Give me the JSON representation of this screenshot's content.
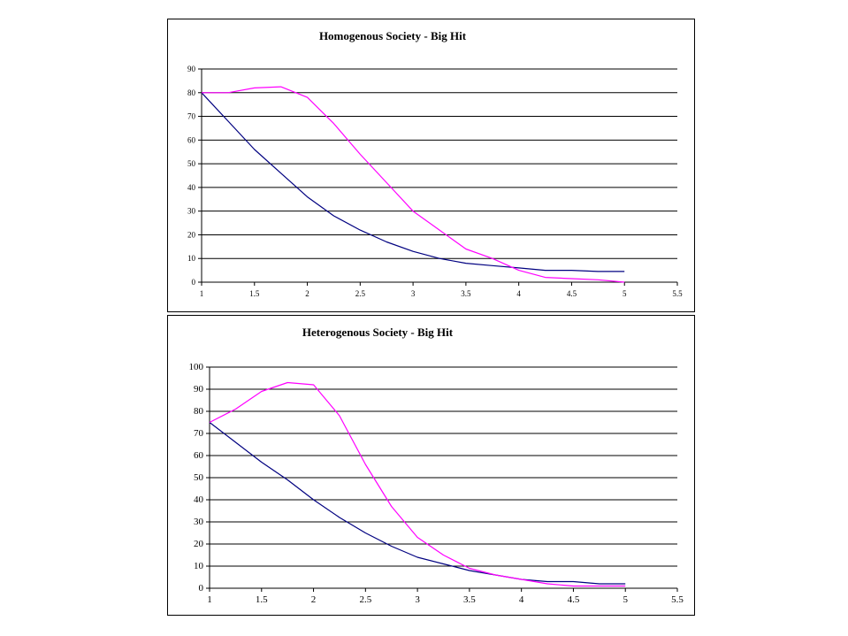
{
  "chart_data": [
    {
      "type": "line",
      "title": "Homogenous Society - Big Hit",
      "xlabel": "",
      "ylabel": "",
      "xlim": [
        1,
        5.5
      ],
      "ylim": [
        0,
        90
      ],
      "x_ticks": [
        "1",
        "1.5",
        "2",
        "2.5",
        "3",
        "3.5",
        "4",
        "4.5",
        "5",
        "5.5"
      ],
      "y_ticks": [
        "0",
        "10",
        "20",
        "30",
        "40",
        "50",
        "60",
        "70",
        "80",
        "90"
      ],
      "grid": "horizontal",
      "legend": "none",
      "series": [
        {
          "color": "#000080",
          "x": [
            1,
            1.25,
            1.5,
            1.75,
            2,
            2.25,
            2.5,
            2.75,
            3,
            3.25,
            3.5,
            3.75,
            4,
            4.25,
            4.5,
            4.75,
            5
          ],
          "y": [
            80,
            68,
            56,
            46,
            36,
            28,
            22,
            17,
            13,
            10,
            8,
            7,
            6,
            5,
            5,
            4.5,
            4.5
          ]
        },
        {
          "color": "#ff00ff",
          "x": [
            1,
            1.25,
            1.5,
            1.75,
            2,
            2.25,
            2.5,
            2.75,
            3,
            3.25,
            3.5,
            3.75,
            4,
            4.25,
            4.5,
            4.75,
            5
          ],
          "y": [
            80,
            80,
            82,
            82.5,
            78,
            67,
            54,
            42,
            30,
            22,
            14,
            10,
            5,
            2,
            1.5,
            1,
            0
          ]
        }
      ]
    },
    {
      "type": "line",
      "title": "Heterogenous Society - Big Hit",
      "xlabel": "",
      "ylabel": "",
      "xlim": [
        1,
        5.5
      ],
      "ylim": [
        0,
        100
      ],
      "x_ticks": [
        "1",
        "1.5",
        "2",
        "2.5",
        "3",
        "3.5",
        "4",
        "4.5",
        "5",
        "5.5"
      ],
      "y_ticks": [
        "0",
        "10",
        "20",
        "30",
        "40",
        "50",
        "60",
        "70",
        "80",
        "90",
        "100"
      ],
      "grid": "horizontal",
      "legend": "none",
      "series": [
        {
          "color": "#000080",
          "x": [
            1,
            1.25,
            1.5,
            1.75,
            2,
            2.25,
            2.5,
            2.75,
            3,
            3.25,
            3.5,
            3.75,
            4,
            4.25,
            4.5,
            4.75,
            5
          ],
          "y": [
            75,
            66,
            57,
            49,
            40,
            32,
            25,
            19,
            14,
            11,
            8,
            6,
            4,
            3,
            3,
            2,
            2
          ]
        },
        {
          "color": "#ff00ff",
          "x": [
            1,
            1.25,
            1.5,
            1.75,
            2,
            2.25,
            2.5,
            2.75,
            3,
            3.25,
            3.5,
            3.75,
            4,
            4.25,
            4.5,
            4.75,
            5
          ],
          "y": [
            75,
            81,
            89,
            93,
            92,
            78,
            56,
            37,
            23,
            15,
            9,
            6,
            4,
            2,
            1,
            1,
            1
          ]
        }
      ]
    }
  ]
}
